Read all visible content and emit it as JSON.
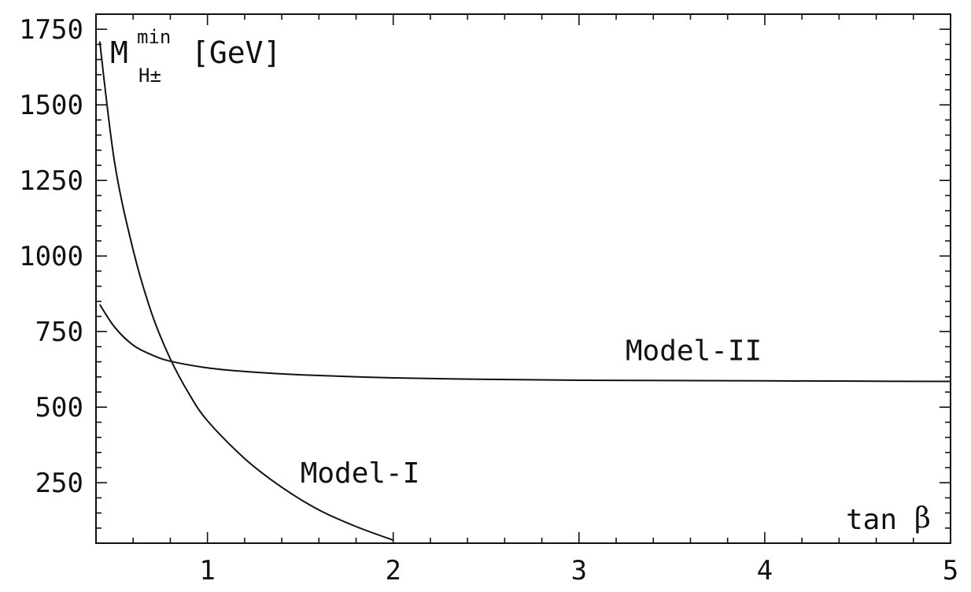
{
  "chart_data": {
    "type": "line",
    "xlim": [
      0.4,
      5
    ],
    "ylim": [
      50,
      1800
    ],
    "x_ticks": [
      1,
      2,
      3,
      4,
      5
    ],
    "x_tick_labels": [
      "1",
      "2",
      "3",
      "4",
      "5"
    ],
    "y_ticks": [
      250,
      500,
      750,
      1000,
      1250,
      1500,
      1750
    ],
    "y_tick_labels": [
      "250",
      "500",
      "750",
      "1000",
      "1250",
      "1500",
      "1750"
    ],
    "ylabel": {
      "main": "M",
      "superscript": "min",
      "subscript": "H±",
      "unit": "[GeV]"
    },
    "xlabel": {
      "text": "tan",
      "greek": "β"
    },
    "grid": false,
    "series": [
      {
        "name": "Model-I",
        "x": [
          0.42,
          0.5,
          0.6,
          0.7,
          0.8,
          0.9,
          1.0,
          1.2,
          1.4,
          1.6,
          1.8,
          2.0
        ],
        "y": [
          1710,
          1310,
          1020,
          810,
          660,
          545,
          455,
          330,
          235,
          160,
          105,
          60
        ]
      },
      {
        "name": "Model-II",
        "x": [
          0.42,
          0.5,
          0.6,
          0.7,
          0.8,
          1.0,
          1.2,
          1.5,
          2.0,
          2.5,
          3.0,
          3.5,
          4.0,
          4.5,
          5.0
        ],
        "y": [
          840,
          765,
          705,
          673,
          652,
          630,
          618,
          607,
          597,
          592,
          589,
          588,
          587,
          586,
          585
        ]
      }
    ],
    "curve_labels": [
      {
        "series": "Model-I",
        "text": "Model-I",
        "x": 1.5,
        "y": 250
      },
      {
        "series": "Model-II",
        "text": "Model-II",
        "x": 3.25,
        "y": 655
      }
    ]
  }
}
